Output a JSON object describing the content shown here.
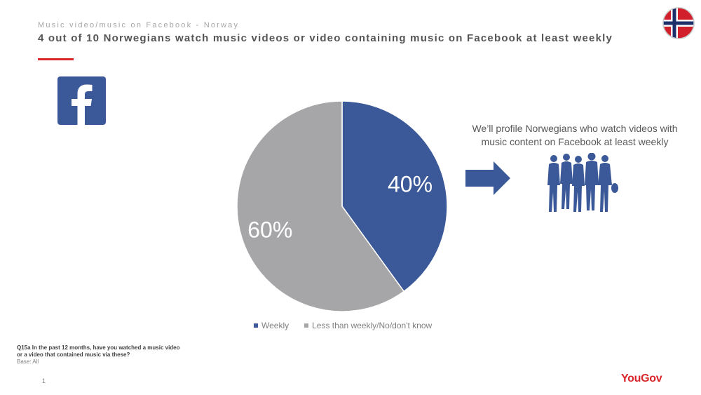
{
  "header": {
    "kicker": "Music video/music on Facebook - Norway",
    "title": "4 out of 10 Norwegians watch music videos or video containing music on Facebook at least weekly"
  },
  "icons": {
    "facebook": "facebook-logo-icon",
    "flag": "norway-flag-icon",
    "arrow": "right-arrow-icon",
    "people": "people-group-icon"
  },
  "colors": {
    "accent": "#d9262c",
    "weekly": "#3b5998",
    "other": "#a6a6a8",
    "facebook": "#3b5998"
  },
  "chart_data": {
    "type": "pie",
    "categories": [
      "Weekly",
      "Less than weekly/No/don't know"
    ],
    "values": [
      40,
      60
    ],
    "data_labels": [
      "40%",
      "60%"
    ],
    "legend_position": "bottom"
  },
  "callout": {
    "line1": "We’ll profile Norwegians who watch videos with",
    "line2": "music content on Facebook at least weekly"
  },
  "footnote": {
    "question_line1": "Q15a In the past 12 months, have you watched a music video",
    "question_line2": "or a video that contained music via these?",
    "base": "Base: All"
  },
  "footer": {
    "page_number": "1",
    "brand": "YouGov"
  }
}
